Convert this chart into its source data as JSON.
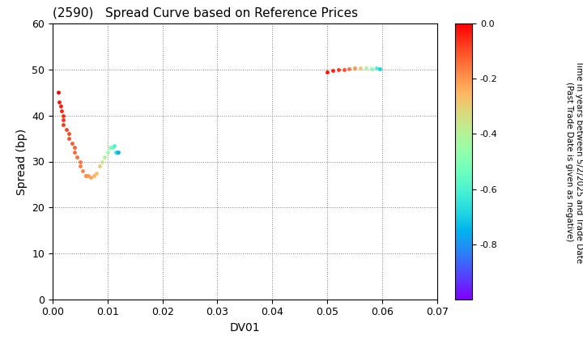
{
  "title": "(2590)   Spread Curve based on Reference Prices",
  "xlabel": "DV01",
  "ylabel": "Spread (bp)",
  "xlim": [
    0.0,
    0.07
  ],
  "ylim": [
    0,
    60
  ],
  "xticks": [
    0.0,
    0.01,
    0.02,
    0.03,
    0.04,
    0.05,
    0.06,
    0.07
  ],
  "yticks": [
    0,
    10,
    20,
    30,
    40,
    50,
    60
  ],
  "colorbar_label_line1": "Time in years between 5/2/2025 and Trade Date",
  "colorbar_label_line2": "(Past Trade Date is given as negative)",
  "colorbar_ticks": [
    0.0,
    -0.2,
    -0.4,
    -0.6,
    -0.8
  ],
  "cluster1": {
    "dv01": [
      0.001,
      0.0012,
      0.0015,
      0.0017,
      0.002,
      0.002,
      0.002,
      0.0025,
      0.003,
      0.003,
      0.0035,
      0.004,
      0.004,
      0.0045,
      0.005,
      0.005,
      0.0055,
      0.006,
      0.006,
      0.0065,
      0.007,
      0.0075,
      0.008,
      0.0085,
      0.009,
      0.0095,
      0.01,
      0.0105,
      0.011,
      0.0112,
      0.0115,
      0.0118,
      0.012
    ],
    "spread": [
      45,
      43,
      42,
      41,
      40,
      39,
      38,
      37,
      36,
      35,
      34,
      33,
      32,
      31,
      30,
      29,
      28,
      27,
      27,
      27,
      26.5,
      27,
      27.5,
      29,
      30,
      31,
      32,
      33,
      33,
      33.5,
      32,
      32,
      32
    ],
    "time": [
      0.0,
      -0.02,
      -0.03,
      -0.04,
      -0.05,
      -0.06,
      -0.07,
      -0.08,
      -0.09,
      -0.1,
      -0.11,
      -0.12,
      -0.13,
      -0.14,
      -0.15,
      -0.16,
      -0.17,
      -0.18,
      -0.19,
      -0.2,
      -0.22,
      -0.24,
      -0.27,
      -0.3,
      -0.35,
      -0.4,
      -0.45,
      -0.5,
      -0.55,
      -0.6,
      -0.65,
      -0.7,
      -0.75
    ]
  },
  "cluster2": {
    "dv01": [
      0.05,
      0.051,
      0.052,
      0.053,
      0.054,
      0.055,
      0.056,
      0.057,
      0.058,
      0.059,
      0.0595
    ],
    "spread": [
      49.5,
      49.8,
      50.0,
      50.1,
      50.2,
      50.3,
      50.3,
      50.3,
      50.2,
      50.3,
      50.2
    ],
    "time": [
      -0.02,
      -0.04,
      -0.07,
      -0.1,
      -0.15,
      -0.2,
      -0.3,
      -0.4,
      -0.5,
      -0.6,
      -0.7
    ]
  }
}
